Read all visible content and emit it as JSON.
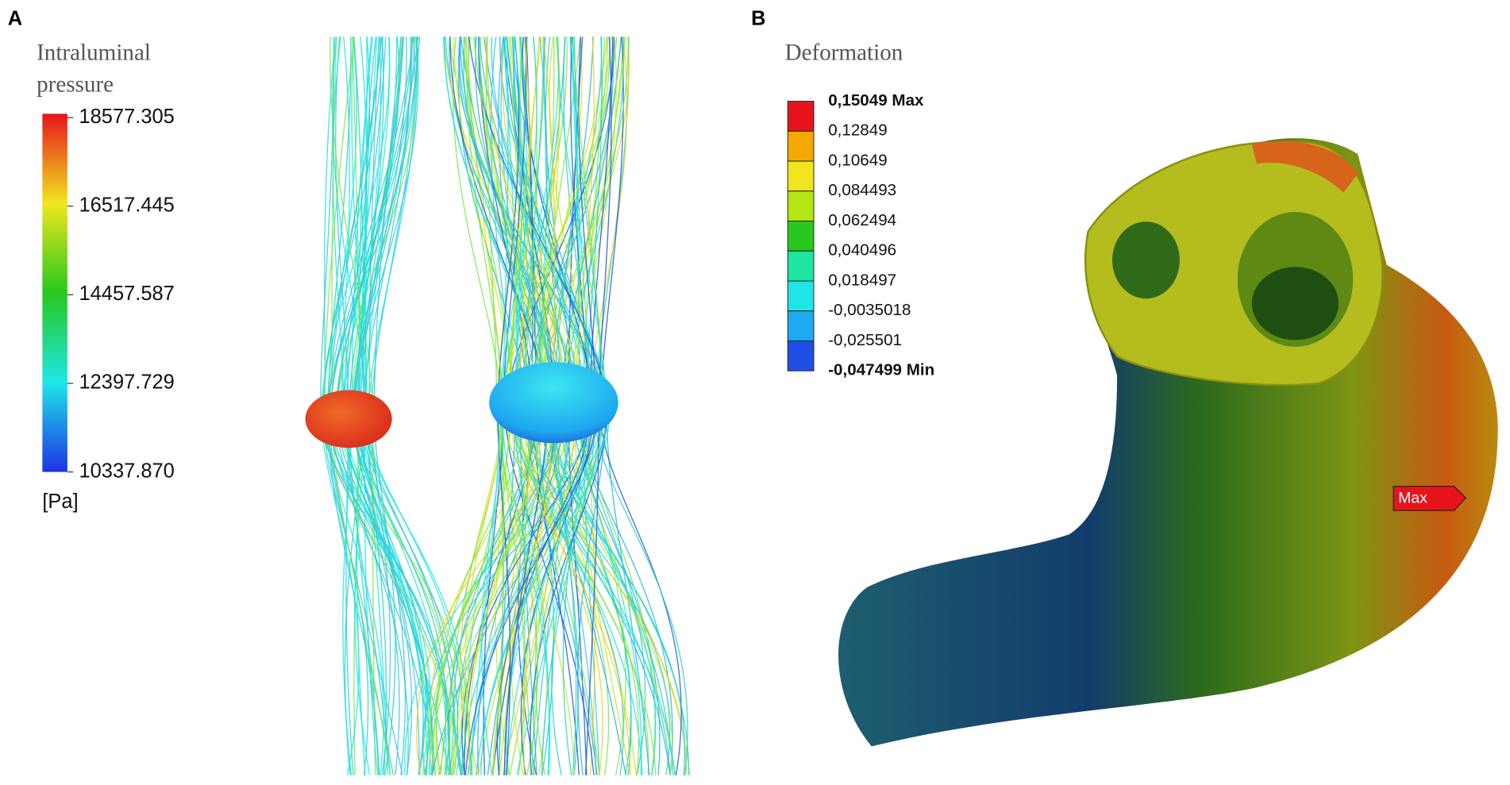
{
  "panel_a": {
    "label": "A",
    "title_lines": [
      "Intraluminal",
      "pressure"
    ],
    "colorbar": {
      "ticks": [
        "18577.305",
        "16517.445",
        "14457.587",
        "12397.729",
        "10337.870"
      ],
      "unit": "[Pa]"
    }
  },
  "panel_b": {
    "label": "B",
    "title": "Deformation",
    "legend": {
      "entries": [
        "0,15049 Max",
        "0,12849",
        "0,10649",
        "0,084493",
        "0,062494",
        "0,040496",
        "0,018497",
        "-0,0035018",
        "-0,025501",
        "-0,047499 Min"
      ],
      "colors": [
        "#e8141c",
        "#f5a800",
        "#f0e61e",
        "#b4e614",
        "#28c81e",
        "#1ee6a0",
        "#1ee6e6",
        "#1eaaf0",
        "#1e50e6"
      ]
    },
    "marker": "Max"
  }
}
